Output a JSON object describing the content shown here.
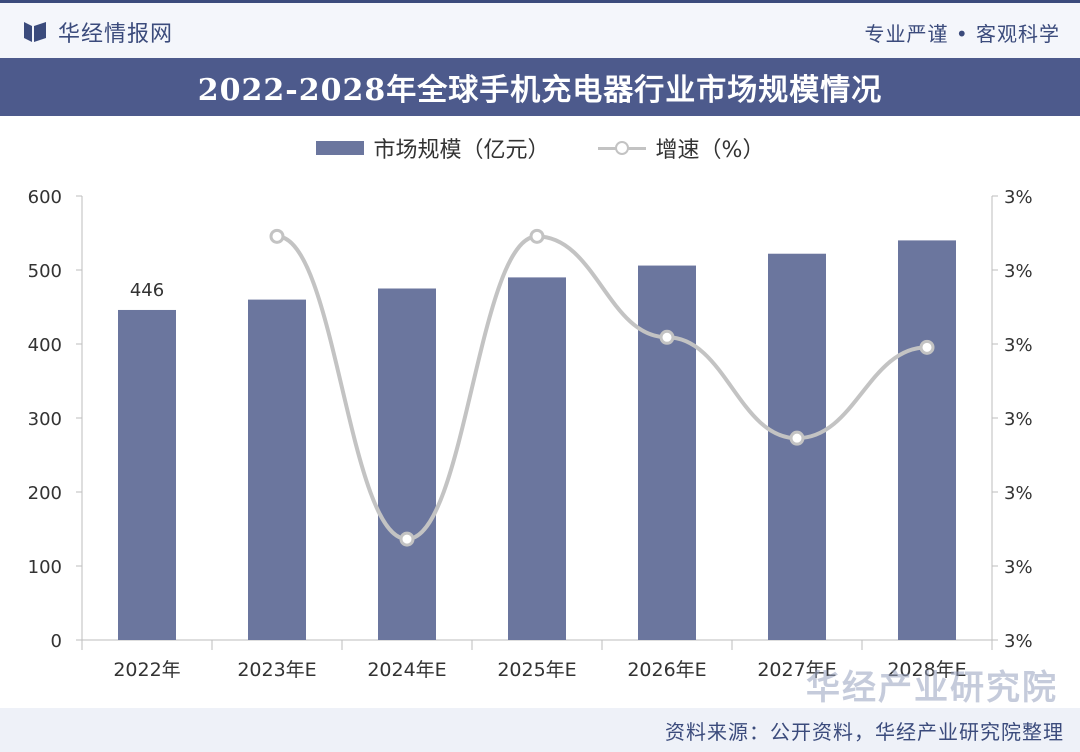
{
  "header": {
    "brand": "华经情报网",
    "slogan": "专业严谨 • 客观科学"
  },
  "colors": {
    "bar": "#6b769e",
    "line": "#c3c3c3",
    "title_bg": "#4d5a8c",
    "brand": "#3b4b7c"
  },
  "legend": {
    "bar_label": "市场规模（亿元）",
    "line_label": "增速（%）"
  },
  "chart_data": {
    "type": "bar",
    "title": "2022-2028年全球手机充电器行业市场规模情况",
    "categories": [
      "2022年",
      "2023年E",
      "2024年E",
      "2025年E",
      "2026年E",
      "2027年E",
      "2028年E"
    ],
    "series": [
      {
        "name": "市场规模（亿元）",
        "type": "bar",
        "axis": "left",
        "values": [
          446,
          460,
          475,
          490,
          506,
          522,
          540
        ],
        "data_labels": [
          "446",
          "",
          "",
          "",
          "",
          "",
          ""
        ]
      },
      {
        "name": "增速（%）",
        "type": "line",
        "axis": "right",
        "smooth": true,
        "values": [
          null,
          3.3,
          3.15,
          3.3,
          3.25,
          3.2,
          3.245
        ]
      }
    ],
    "ylim_left": [
      0,
      600
    ],
    "yticks_left": [
      0,
      100,
      200,
      300,
      400,
      500,
      600
    ],
    "ylim_right": [
      3.1,
      3.32
    ],
    "yticks_right": [
      "3%",
      "3%",
      "3%",
      "3%",
      "3%",
      "3%",
      "3%"
    ],
    "grid": false,
    "legend_position": "top-center"
  },
  "watermark": {
    "text": "华经产业研究院",
    "url": "www.huaon.com"
  },
  "footer": {
    "source": "资料来源：公开资料，华经产业研究院整理"
  }
}
